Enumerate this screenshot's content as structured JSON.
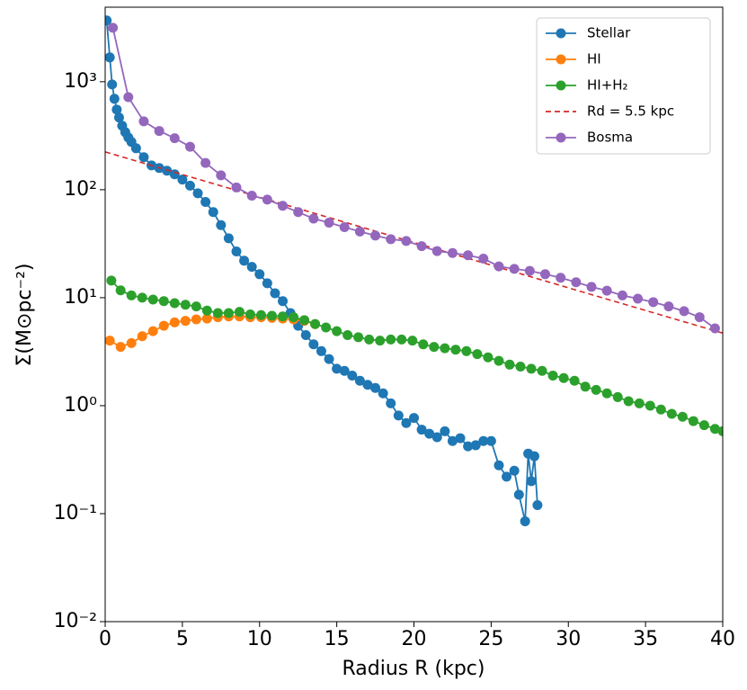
{
  "chart_data": {
    "type": "line",
    "xlabel": "Radius R (kpc)",
    "ylabel": "Σ(M⊙pc⁻²)",
    "xlim": [
      0,
      40
    ],
    "xticks": [
      0,
      5,
      10,
      15,
      20,
      25,
      30,
      35,
      40
    ],
    "ylim": [
      0.01,
      4900
    ],
    "log_y": true,
    "yticks": [
      {
        "value": 0.01,
        "label": "10⁻²"
      },
      {
        "value": 0.1,
        "label": "10⁻¹"
      },
      {
        "value": 1,
        "label": "10⁰"
      },
      {
        "value": 10,
        "label": "10¹"
      },
      {
        "value": 100,
        "label": "10²"
      },
      {
        "value": 1000,
        "label": "10³"
      }
    ],
    "legend": "upper right",
    "series": [
      {
        "name": "Stellar",
        "color": "#1f77b4",
        "marker": true,
        "x": [
          0.1,
          0.3,
          0.45,
          0.6,
          0.75,
          0.9,
          1.1,
          1.3,
          1.5,
          1.7,
          2.0,
          2.5,
          3.0,
          3.5,
          4.0,
          4.5,
          5.0,
          5.5,
          6.0,
          6.5,
          7.0,
          7.5,
          8.0,
          8.5,
          9.0,
          9.5,
          10,
          10.5,
          11,
          11.5,
          12,
          12.5,
          13,
          13.5,
          14,
          14.5,
          15,
          15.5,
          16,
          16.5,
          17,
          17.5,
          18,
          18.5,
          19,
          19.5,
          20,
          20.5,
          21,
          21.5,
          22,
          22.5,
          23,
          23.5,
          24,
          24.5,
          25,
          25.5,
          26,
          26.5,
          26.8,
          27.2,
          27.4,
          27.6,
          27.8,
          28
        ],
        "values": [
          3690,
          1680,
          944,
          695,
          552,
          466,
          391,
          341,
          304,
          277,
          242,
          200,
          168,
          159,
          150,
          139,
          124,
          109,
          92.6,
          77,
          62,
          47,
          35.5,
          26.8,
          22,
          19.3,
          16.5,
          13.6,
          11,
          9.3,
          7.2,
          5.5,
          4.5,
          3.7,
          3.2,
          2.7,
          2.2,
          2.1,
          1.9,
          1.7,
          1.56,
          1.46,
          1.3,
          1.05,
          0.81,
          0.69,
          0.77,
          0.6,
          0.55,
          0.51,
          0.58,
          0.47,
          0.5,
          0.42,
          0.43,
          0.47,
          0.47,
          0.28,
          0.22,
          0.25,
          0.15,
          0.085,
          0.36,
          0.2,
          0.34,
          0.12
        ]
      },
      {
        "name": "HI",
        "color": "#ff7f0e",
        "marker": true,
        "x": [
          0.3,
          1.0,
          1.7,
          2.4,
          3.1,
          3.8,
          4.5,
          5.2,
          5.9,
          6.6,
          7.3,
          8.0,
          8.7,
          9.4,
          10.1,
          10.8,
          11.5,
          12.2,
          12.9,
          13.6
        ],
        "values": [
          4.0,
          3.5,
          3.8,
          4.4,
          4.9,
          5.5,
          5.9,
          6.1,
          6.3,
          6.4,
          6.6,
          6.7,
          6.7,
          6.6,
          6.6,
          6.5,
          6.4,
          6.3,
          6.1,
          5.7
        ]
      },
      {
        "name": "HI+H₂",
        "color": "#2ca02c",
        "marker": true,
        "x": [
          0.4,
          1.0,
          1.7,
          2.4,
          3.1,
          3.8,
          4.5,
          5.2,
          5.9,
          6.6,
          7.3,
          8.0,
          8.7,
          9.4,
          10.1,
          10.8,
          11.5,
          12.2,
          12.9,
          13.6,
          14.3,
          15.0,
          15.7,
          16.4,
          17.1,
          17.8,
          18.5,
          19.2,
          19.9,
          20.6,
          21.3,
          22.0,
          22.7,
          23.4,
          24.1,
          24.8,
          25.5,
          26.2,
          26.9,
          27.6,
          28.3,
          29.0,
          29.7,
          30.4,
          31.1,
          31.8,
          32.5,
          33.2,
          33.9,
          34.6,
          35.3,
          36.0,
          36.7,
          37.4,
          38.1,
          38.8,
          39.5,
          40
        ],
        "values": [
          14.4,
          11.7,
          10.5,
          10,
          9.6,
          9.3,
          8.9,
          8.6,
          8.3,
          7.6,
          7.2,
          7.2,
          7.4,
          7.0,
          6.9,
          6.8,
          6.7,
          6.6,
          6.2,
          5.7,
          5.3,
          4.9,
          4.5,
          4.3,
          4.1,
          4.0,
          4.1,
          4.1,
          4.0,
          3.7,
          3.5,
          3.4,
          3.3,
          3.2,
          3.0,
          2.8,
          2.6,
          2.4,
          2.3,
          2.2,
          2.1,
          1.9,
          1.8,
          1.7,
          1.5,
          1.4,
          1.3,
          1.2,
          1.1,
          1.05,
          1.0,
          0.92,
          0.84,
          0.79,
          0.72,
          0.66,
          0.61,
          0.58
        ]
      },
      {
        "name": "Rd = 5.5 kpc",
        "color": "#d62728",
        "dashed": true,
        "x": [
          0,
          40
        ],
        "values": [
          224,
          4.7
        ]
      },
      {
        "name": "Bosma",
        "color": "#9467bd",
        "marker": true,
        "x": [
          0.5,
          1.5,
          2.5,
          3.5,
          4.5,
          5.5,
          6.5,
          7.5,
          8.5,
          9.5,
          10.5,
          11.5,
          12.5,
          13.5,
          14.5,
          15.5,
          16.5,
          17.5,
          18.5,
          19.5,
          20.5,
          21.5,
          22.5,
          23.5,
          24.5,
          25.5,
          26.5,
          27.5,
          28.5,
          29.5,
          30.5,
          31.5,
          32.5,
          33.5,
          34.5,
          35.5,
          36.5,
          37.5,
          38.5,
          39.5
        ],
        "values": [
          3160,
          720,
          430,
          350,
          300,
          250,
          177,
          136,
          105,
          88,
          81,
          71,
          62,
          54,
          49.5,
          45,
          41,
          37.6,
          34.8,
          33.5,
          30,
          27,
          25.9,
          24.7,
          23,
          19.5,
          18.5,
          17.7,
          16.5,
          15.3,
          13.9,
          12.6,
          11.6,
          10.5,
          9.8,
          9.1,
          8.3,
          7.5,
          6.6,
          5.2
        ]
      }
    ]
  }
}
